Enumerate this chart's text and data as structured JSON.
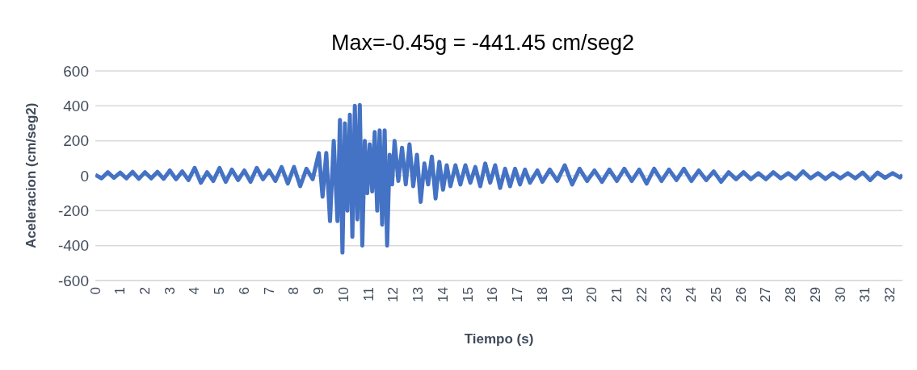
{
  "chart_data": {
    "type": "line",
    "title": "Max=-0.45g = -441.45 cm/seg2",
    "xlabel": "Tiempo (s)",
    "ylabel": "Aceleracion (cm/seg2)",
    "x": [
      0,
      0.25,
      0.5,
      0.75,
      1,
      1.25,
      1.5,
      1.75,
      2,
      2.25,
      2.5,
      2.75,
      3,
      3.25,
      3.5,
      3.75,
      4,
      4.25,
      4.5,
      4.75,
      5,
      5.25,
      5.5,
      5.75,
      6,
      6.25,
      6.5,
      6.75,
      7,
      7.25,
      7.5,
      7.75,
      8,
      8.25,
      8.5,
      8.75,
      9,
      9.15,
      9.3,
      9.45,
      9.6,
      9.75,
      9.85,
      9.95,
      10.05,
      10.15,
      10.25,
      10.35,
      10.45,
      10.55,
      10.65,
      10.75,
      10.85,
      10.95,
      11.05,
      11.15,
      11.25,
      11.35,
      11.45,
      11.55,
      11.65,
      11.75,
      11.85,
      11.95,
      12.05,
      12.2,
      12.35,
      12.5,
      12.65,
      12.8,
      12.95,
      13.1,
      13.25,
      13.4,
      13.55,
      13.7,
      13.85,
      14,
      14.15,
      14.3,
      14.5,
      14.7,
      14.9,
      15.1,
      15.3,
      15.5,
      15.7,
      15.9,
      16.1,
      16.3,
      16.5,
      16.7,
      16.9,
      17.1,
      17.3,
      17.5,
      17.8,
      18,
      18.3,
      18.6,
      18.9,
      19.2,
      19.5,
      19.8,
      20.1,
      20.4,
      20.7,
      21,
      21.3,
      21.6,
      21.9,
      22.2,
      22.5,
      22.8,
      23.1,
      23.4,
      23.7,
      24,
      24.3,
      24.6,
      24.9,
      25.2,
      25.5,
      25.8,
      26.1,
      26.4,
      26.7,
      27,
      27.3,
      27.6,
      27.9,
      28.2,
      28.5,
      28.8,
      29.1,
      29.4,
      29.7,
      30,
      30.3,
      30.6,
      30.9,
      31.2,
      31.5,
      31.8,
      32.1,
      32.4,
      32.5
    ],
    "series": [
      {
        "color": "#4472c4",
        "values": [
          5,
          -15,
          20,
          -12,
          18,
          -15,
          22,
          -18,
          20,
          -15,
          22,
          -18,
          30,
          -20,
          25,
          -25,
          45,
          -40,
          20,
          -30,
          45,
          -35,
          35,
          -25,
          30,
          -35,
          45,
          -20,
          30,
          -30,
          50,
          -45,
          50,
          -60,
          40,
          -20,
          130,
          -120,
          130,
          -260,
          200,
          -260,
          320,
          -440,
          300,
          -200,
          350,
          -350,
          400,
          -250,
          405,
          -400,
          200,
          -100,
          180,
          -90,
          250,
          -200,
          260,
          -280,
          260,
          -400,
          120,
          -50,
          200,
          -30,
          160,
          -50,
          180,
          -60,
          120,
          -150,
          70,
          -50,
          110,
          -130,
          80,
          -80,
          60,
          -60,
          60,
          -50,
          60,
          -40,
          50,
          -60,
          70,
          -40,
          60,
          -70,
          40,
          -60,
          40,
          -50,
          35,
          -40,
          30,
          -35,
          35,
          -30,
          60,
          -50,
          40,
          -30,
          30,
          -35,
          35,
          -30,
          40,
          -30,
          35,
          -45,
          40,
          -30,
          35,
          -25,
          40,
          -30,
          30,
          -25,
          25,
          -35,
          20,
          -20,
          20,
          -20,
          15,
          -20,
          20,
          -15,
          15,
          -18,
          25,
          -15,
          15,
          -18,
          15,
          -15,
          15,
          -15,
          18,
          -25,
          18,
          -12,
          15,
          -10,
          5
        ]
      }
    ],
    "xlim": [
      0,
      32.5
    ],
    "xticks": [
      0,
      1,
      2,
      3,
      4,
      5,
      6,
      7,
      8,
      9,
      10,
      11,
      12,
      13,
      14,
      15,
      16,
      17,
      18,
      19,
      20,
      21,
      22,
      23,
      24,
      25,
      26,
      27,
      28,
      29,
      30,
      31,
      32
    ],
    "ylim": [
      -600,
      600
    ],
    "yticks": [
      -600,
      -400,
      -200,
      0,
      200,
      400,
      600
    ],
    "grid": "y",
    "legend": false,
    "marker": "none",
    "line_style": "solid"
  }
}
